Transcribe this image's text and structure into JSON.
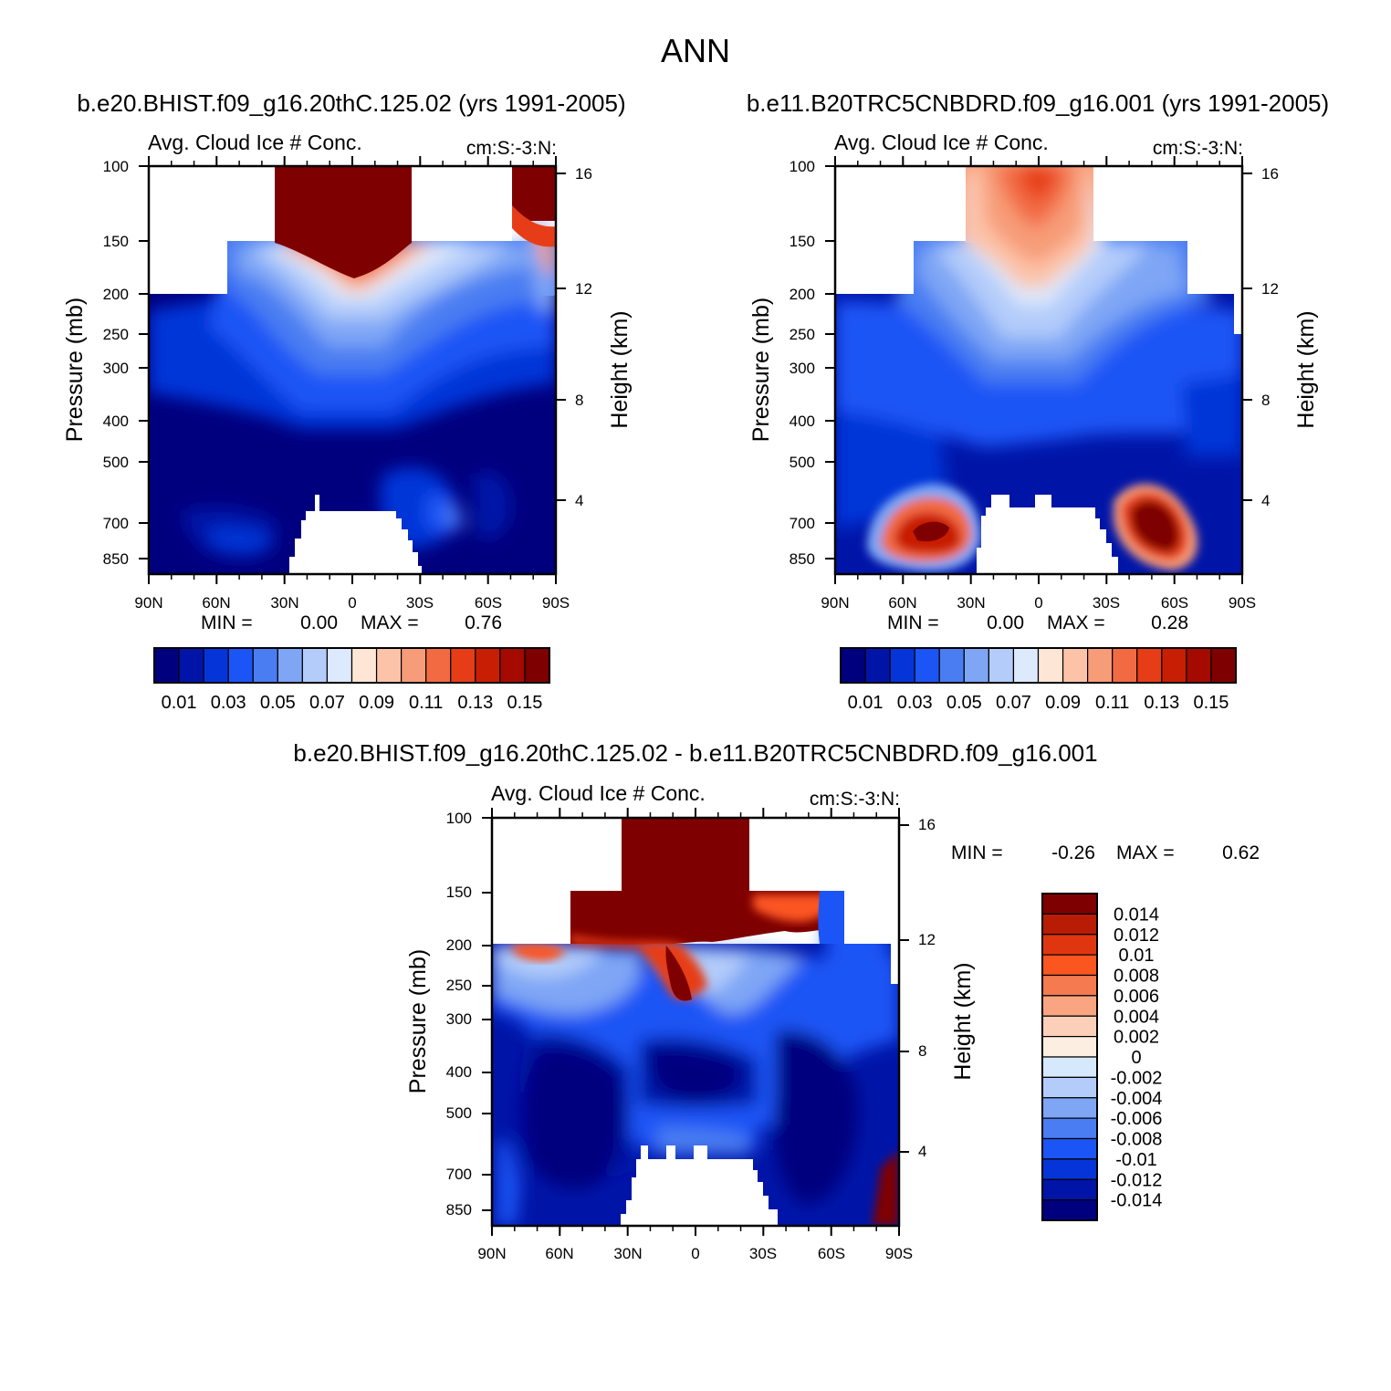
{
  "figure_title": "ANN",
  "palette": {
    "white": "#ffffff",
    "line": "#000000"
  },
  "chart_data": [
    {
      "type": "heatmap",
      "case_title": "b.e20.BHIST.f09_g16.20thC.125.02 (yrs 1991-2005)",
      "variable_label": "Avg. Cloud Ice # Conc.",
      "units_label": "cm:S:-3:N:",
      "xlabel": "",
      "ylabel": "Pressure (mb)",
      "y2label": "Height (km)",
      "x_ticks": [
        "90N",
        "60N",
        "30N",
        "0",
        "30S",
        "60S",
        "90S"
      ],
      "y_ticks": [
        "100",
        "150",
        "200",
        "250",
        "300",
        "400",
        "500",
        "700",
        "850"
      ],
      "y2_ticks": [
        "16",
        "12",
        "8",
        "4"
      ],
      "min_label": "MIN =",
      "min_value": "0.00",
      "max_label": "MAX =",
      "max_value": "0.76",
      "colorbar_labels": [
        "0.01",
        "0.03",
        "0.05",
        "0.07",
        "0.09",
        "0.11",
        "0.13",
        "0.15"
      ],
      "colors": [
        "#00007f",
        "#0015a8",
        "#0535d8",
        "#1c55f5",
        "#4a7df2",
        "#7ea6f5",
        "#b3ccfa",
        "#dde9fc",
        "#fde6d6",
        "#fcc3a8",
        "#f79c78",
        "#f26a42",
        "#e63d18",
        "#c81e04",
        "#a40a00",
        "#7f0000"
      ]
    },
    {
      "type": "heatmap",
      "case_title": "b.e11.B20TRC5CNBDRD.f09_g16.001 (yrs 1991-2005)",
      "variable_label": "Avg. Cloud Ice # Conc.",
      "units_label": "cm:S:-3:N:",
      "xlabel": "",
      "ylabel": "Pressure (mb)",
      "y2label": "Height (km)",
      "x_ticks": [
        "90N",
        "60N",
        "30N",
        "0",
        "30S",
        "60S",
        "90S"
      ],
      "y_ticks": [
        "100",
        "150",
        "200",
        "250",
        "300",
        "400",
        "500",
        "700",
        "850"
      ],
      "y2_ticks": [
        "16",
        "12",
        "8",
        "4"
      ],
      "min_label": "MIN =",
      "min_value": "0.00",
      "max_label": "MAX =",
      "max_value": "0.28",
      "colorbar_labels": [
        "0.01",
        "0.03",
        "0.05",
        "0.07",
        "0.09",
        "0.11",
        "0.13",
        "0.15"
      ],
      "colors": [
        "#00007f",
        "#0015a8",
        "#0535d8",
        "#1c55f5",
        "#4a7df2",
        "#7ea6f5",
        "#b3ccfa",
        "#dde9fc",
        "#fde6d6",
        "#fcc3a8",
        "#f79c78",
        "#f26a42",
        "#e63d18",
        "#c81e04",
        "#a40a00",
        "#7f0000"
      ]
    },
    {
      "type": "heatmap",
      "case_title": "b.e20.BHIST.f09_g16.20thC.125.02 - b.e11.B20TRC5CNBDRD.f09_g16.001",
      "variable_label": "Avg. Cloud Ice # Conc.",
      "units_label": "cm:S:-3:N:",
      "xlabel": "",
      "ylabel": "Pressure (mb)",
      "y2label": "Height (km)",
      "x_ticks": [
        "90N",
        "60N",
        "30N",
        "0",
        "30S",
        "60S",
        "90S"
      ],
      "y_ticks": [
        "100",
        "150",
        "200",
        "250",
        "300",
        "400",
        "500",
        "700",
        "850"
      ],
      "y2_ticks": [
        "16",
        "12",
        "8",
        "4"
      ],
      "min_label": "MIN =",
      "min_value": "-0.26",
      "max_label": "MAX =",
      "max_value": "0.62",
      "colorbar_labels": [
        "0.014",
        "0.012",
        "0.01",
        "0.008",
        "0.006",
        "0.004",
        "0.002",
        "0",
        "-0.002",
        "-0.004",
        "-0.006",
        "-0.008",
        "-0.01",
        "-0.012",
        "-0.014"
      ],
      "colors": [
        "#7f0000",
        "#b81c04",
        "#e0360f",
        "#fb5520",
        "#f57a50",
        "#f9a582",
        "#fcd0b8",
        "#fdeee2",
        "#d6e8fc",
        "#b3ccfa",
        "#7ea6f5",
        "#4a7df2",
        "#1c55f5",
        "#0535d8",
        "#0015a8",
        "#00007f"
      ]
    }
  ]
}
